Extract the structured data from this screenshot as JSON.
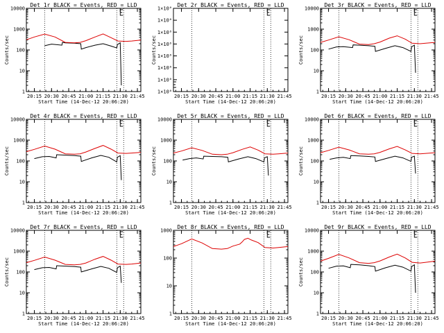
{
  "figure": {
    "background": "#ffffff",
    "axis_color": "#000000"
  },
  "chart_data": [
    {
      "type": "line",
      "title": "Det 1r BLACK = Events, RED = LLD",
      "xlabel": "Start Time (14-Dec-12 20:06:20)",
      "ylabel": "Counts/sec",
      "yscale": "log",
      "ylim": [
        1,
        10000
      ],
      "ytick_labels": [
        "1",
        "10",
        "100",
        "1000",
        "10000"
      ],
      "xlim": [
        "20:08",
        "21:48"
      ],
      "xtick_labels": [
        "20:15",
        "20:30",
        "20:45",
        "21:00",
        "21:15",
        "21:30",
        "21:45"
      ],
      "vlines": [
        "20:24",
        "21:27",
        "21:33"
      ],
      "markers": [
        "21:30"
      ],
      "series": [
        {
          "name": "Events",
          "color": "#000000",
          "x": [
            "20:24",
            "20:30",
            "20:39",
            "20:39.5",
            "20:42",
            "20:50",
            "20:55.5",
            "20:56",
            "21:00",
            "21:08",
            "21:15",
            "21:21",
            "21:27",
            "21:27.5",
            "21:30",
            "21:31"
          ],
          "y": [
            160,
            190,
            170,
            230,
            220,
            210,
            200,
            110,
            130,
            170,
            200,
            160,
            125,
            180,
            220,
            2
          ]
        },
        {
          "name": "LLD",
          "color": "#dd0000",
          "x": [
            "20:08",
            "20:15",
            "20:24",
            "20:33",
            "20:42",
            "20:50",
            "20:55",
            "21:00",
            "21:08",
            "21:15",
            "21:22",
            "21:28",
            "21:35",
            "21:40",
            "21:48"
          ],
          "y": [
            310,
            420,
            580,
            420,
            230,
            220,
            230,
            280,
            420,
            590,
            390,
            270,
            260,
            270,
            300
          ]
        }
      ]
    },
    {
      "type": "line",
      "title": "Det 2r BLACK = Events, RED = LLD",
      "xlabel": "Start Time (14-Dec-12 20:06:20)",
      "ylabel": "Counts/sec",
      "yscale": "log",
      "ylim": [
        1,
        1.000001
      ],
      "ytick_labels": [
        "1×10⁰",
        "1×10⁰",
        "1×10⁰",
        "1×10⁰",
        "1×10⁰",
        "1×10⁰",
        "1×10⁰",
        "1×10⁰"
      ],
      "xlim": [
        "20:08",
        "21:48"
      ],
      "xtick_labels": [
        "20:15",
        "20:30",
        "20:45",
        "21:00",
        "21:15",
        "21:30",
        "21:45"
      ],
      "vlines": [
        "20:24",
        "21:27",
        "21:33"
      ],
      "markers": [
        "20:08",
        "21:30"
      ],
      "series": []
    },
    {
      "type": "line",
      "title": "Det 3r BLACK = Events, RED = LLD",
      "xlabel": "Start Time (14-Dec-12 20:06:20)",
      "ylabel": "Counts/sec",
      "yscale": "log",
      "ylim": [
        1,
        10000
      ],
      "ytick_labels": [
        "1",
        "10",
        "100",
        "1000",
        "10000"
      ],
      "xlim": [
        "20:08",
        "21:48"
      ],
      "xtick_labels": [
        "20:15",
        "20:30",
        "20:45",
        "21:00",
        "21:15",
        "21:30",
        "21:45"
      ],
      "vlines": [
        "20:24",
        "21:27",
        "21:33"
      ],
      "markers": [
        "21:30"
      ],
      "series": [
        {
          "name": "Events",
          "color": "#000000",
          "x": [
            "20:15",
            "20:22",
            "20:28",
            "20:36",
            "20:36.5",
            "20:42",
            "20:50",
            "20:55.5",
            "20:56",
            "21:05",
            "21:13",
            "21:20",
            "21:27",
            "21:27.5",
            "21:30",
            "21:31"
          ],
          "y": [
            110,
            140,
            145,
            130,
            175,
            170,
            160,
            150,
            85,
            120,
            160,
            130,
            85,
            140,
            170,
            8
          ]
        },
        {
          "name": "LLD",
          "color": "#dd0000",
          "x": [
            "20:08",
            "20:15",
            "20:24",
            "20:33",
            "20:42",
            "20:50",
            "20:55",
            "21:00",
            "21:08",
            "21:15",
            "21:22",
            "21:28",
            "21:35",
            "21:40",
            "21:48"
          ],
          "y": [
            230,
            300,
            430,
            310,
            190,
            180,
            200,
            240,
            370,
            480,
            330,
            210,
            200,
            210,
            230
          ]
        }
      ]
    },
    {
      "type": "line",
      "title": "Det 4r BLACK = Events, RED = LLD",
      "xlabel": "Start Time (14-Dec-12 20:06:20)",
      "ylabel": "Counts/sec",
      "yscale": "log",
      "ylim": [
        1,
        10000
      ],
      "ytick_labels": [
        "1",
        "10",
        "100",
        "1000",
        "10000"
      ],
      "xlim": [
        "20:08",
        "21:48"
      ],
      "xtick_labels": [
        "20:15",
        "20:30",
        "20:45",
        "21:00",
        "21:15",
        "21:30",
        "21:45"
      ],
      "vlines": [
        "20:24",
        "21:27",
        "21:33"
      ],
      "markers": [
        "21:30"
      ],
      "series": [
        {
          "name": "Events",
          "color": "#000000",
          "x": [
            "20:15",
            "20:22",
            "20:28",
            "20:34",
            "20:34.5",
            "20:42",
            "20:50",
            "20:55.5",
            "20:56",
            "21:05",
            "21:13",
            "21:20",
            "21:27",
            "21:27.5",
            "21:30",
            "21:31"
          ],
          "y": [
            130,
            160,
            165,
            140,
            200,
            190,
            180,
            170,
            95,
            140,
            185,
            150,
            90,
            150,
            180,
            12
          ]
        },
        {
          "name": "LLD",
          "color": "#dd0000",
          "x": [
            "20:08",
            "20:15",
            "20:24",
            "20:33",
            "20:42",
            "20:50",
            "20:55",
            "21:00",
            "21:08",
            "21:15",
            "21:22",
            "21:28",
            "21:35",
            "21:40",
            "21:48"
          ],
          "y": [
            280,
            360,
            520,
            370,
            220,
            210,
            220,
            270,
            400,
            560,
            370,
            240,
            230,
            240,
            260
          ]
        }
      ]
    },
    {
      "type": "line",
      "title": "Det 5r BLACK = Events, RED = LLD",
      "xlabel": "Start Time (14-Dec-12 20:06:20)",
      "ylabel": "Counts/sec",
      "yscale": "log",
      "ylim": [
        1,
        10000
      ],
      "ytick_labels": [
        "1",
        "10",
        "100",
        "1000",
        "10000"
      ],
      "xlim": [
        "20:08",
        "21:48"
      ],
      "xtick_labels": [
        "20:15",
        "20:30",
        "20:45",
        "21:00",
        "21:15",
        "21:30",
        "21:45"
      ],
      "vlines": [
        "20:24",
        "21:27",
        "21:33"
      ],
      "markers": [
        "21:30"
      ],
      "series": [
        {
          "name": "Events",
          "color": "#000000",
          "x": [
            "20:16",
            "20:22",
            "20:28",
            "20:34",
            "20:34.5",
            "20:42",
            "20:50",
            "20:55.5",
            "20:56",
            "21:05",
            "21:13",
            "21:20",
            "21:27",
            "21:27.5",
            "21:30",
            "21:31"
          ],
          "y": [
            110,
            130,
            140,
            125,
            170,
            165,
            160,
            150,
            90,
            125,
            160,
            130,
            90,
            140,
            160,
            20
          ]
        },
        {
          "name": "LLD",
          "color": "#dd0000",
          "x": [
            "20:08",
            "20:15",
            "20:24",
            "20:33",
            "20:42",
            "20:50",
            "20:55",
            "21:00",
            "21:08",
            "21:15",
            "21:22",
            "21:28",
            "21:35",
            "21:40",
            "21:48"
          ],
          "y": [
            240,
            300,
            430,
            320,
            210,
            200,
            210,
            250,
            360,
            470,
            330,
            220,
            210,
            220,
            240
          ]
        }
      ]
    },
    {
      "type": "line",
      "title": "Det 6r BLACK = Events, RED = LLD",
      "xlabel": "Start Time (14-Dec-12 20:06:20)",
      "ylabel": "Counts/sec",
      "yscale": "log",
      "ylim": [
        1,
        10000
      ],
      "ytick_labels": [
        "1",
        "10",
        "100",
        "1000",
        "10000"
      ],
      "xlim": [
        "20:08",
        "21:48"
      ],
      "xtick_labels": [
        "20:15",
        "20:30",
        "20:45",
        "21:00",
        "21:15",
        "21:30",
        "21:45"
      ],
      "vlines": [
        "20:24",
        "21:27",
        "21:33"
      ],
      "markers": [
        "21:30"
      ],
      "series": [
        {
          "name": "Events",
          "color": "#000000",
          "x": [
            "20:16",
            "20:22",
            "20:28",
            "20:34",
            "20:34.5",
            "20:42",
            "20:50",
            "20:55.5",
            "20:56",
            "21:05",
            "21:13",
            "21:20",
            "21:27",
            "21:27.5",
            "21:30",
            "21:31"
          ],
          "y": [
            120,
            140,
            150,
            130,
            180,
            175,
            165,
            155,
            95,
            130,
            170,
            140,
            95,
            150,
            170,
            25
          ]
        },
        {
          "name": "LLD",
          "color": "#dd0000",
          "x": [
            "20:08",
            "20:15",
            "20:24",
            "20:33",
            "20:42",
            "20:50",
            "20:55",
            "21:00",
            "21:08",
            "21:15",
            "21:22",
            "21:28",
            "21:35",
            "21:40",
            "21:48"
          ],
          "y": [
            250,
            320,
            460,
            340,
            220,
            210,
            220,
            260,
            380,
            500,
            340,
            230,
            220,
            230,
            250
          ]
        }
      ]
    },
    {
      "type": "line",
      "title": "Det 7r BLACK = Events, RED = LLD",
      "xlabel": "Start Time (14-Dec-12 20:06:20)",
      "ylabel": "Counts/sec",
      "yscale": "log",
      "ylim": [
        1,
        10000
      ],
      "ytick_labels": [
        "1",
        "10",
        "100",
        "1000",
        "10000"
      ],
      "xlim": [
        "20:08",
        "21:48"
      ],
      "xtick_labels": [
        "20:15",
        "20:30",
        "20:45",
        "21:00",
        "21:15",
        "21:30",
        "21:45"
      ],
      "vlines": [
        "20:24",
        "21:27",
        "21:33"
      ],
      "markers": [
        "21:30"
      ],
      "series": [
        {
          "name": "Events",
          "color": "#000000",
          "x": [
            "20:15",
            "20:22",
            "20:28",
            "20:34",
            "20:34.5",
            "20:42",
            "20:50",
            "20:55.5",
            "20:56",
            "21:05",
            "21:13",
            "21:20",
            "21:27",
            "21:27.5",
            "21:30",
            "21:31"
          ],
          "y": [
            130,
            160,
            165,
            140,
            200,
            190,
            180,
            170,
            100,
            140,
            185,
            150,
            95,
            160,
            190,
            30
          ]
        },
        {
          "name": "LLD",
          "color": "#dd0000",
          "x": [
            "20:08",
            "20:15",
            "20:24",
            "20:33",
            "20:42",
            "20:50",
            "20:55",
            "21:00",
            "21:08",
            "21:15",
            "21:22",
            "21:28",
            "21:35",
            "21:40",
            "21:48"
          ],
          "y": [
            280,
            360,
            520,
            370,
            230,
            220,
            230,
            270,
            410,
            560,
            370,
            240,
            230,
            240,
            270
          ]
        }
      ]
    },
    {
      "type": "line",
      "title": "Det 8r BLACK = Events, RED = LLD",
      "xlabel": "Start Time (14-Dec-12 20:06:20)",
      "ylabel": "",
      "yscale": "log",
      "ylim": [
        1,
        1000
      ],
      "ytick_labels": [
        "1",
        "10",
        "100",
        "1000"
      ],
      "xlim": [
        "20:08",
        "21:48"
      ],
      "xtick_labels": [
        "20:15",
        "20:30",
        "20:45",
        "21:00",
        "21:15",
        "21:30",
        "21:45"
      ],
      "vlines": [
        "20:24",
        "21:27",
        "21:33"
      ],
      "markers": [
        "21:30"
      ],
      "series": [
        {
          "name": "LLD",
          "color": "#dd0000",
          "x": [
            "20:08",
            "20:15",
            "20:24",
            "20:33",
            "20:42",
            "20:50",
            "20:55",
            "21:00",
            "21:06",
            "21:08",
            "21:10",
            "21:13",
            "21:16",
            "21:22",
            "21:28",
            "21:35",
            "21:40",
            "21:48"
          ],
          "y": [
            260,
            330,
            490,
            350,
            220,
            210,
            220,
            270,
            320,
            380,
            470,
            520,
            450,
            360,
            240,
            230,
            240,
            260
          ]
        }
      ]
    },
    {
      "type": "line",
      "title": "Det 9r BLACK = Events, RED = LLD",
      "xlabel": "Start Time (14-Dec-12 20:06:20)",
      "ylabel": "Counts/sec",
      "yscale": "log",
      "ylim": [
        1,
        10000
      ],
      "ytick_labels": [
        "1",
        "10",
        "100",
        "1000",
        "10000"
      ],
      "xlim": [
        "20:08",
        "21:48"
      ],
      "xtick_labels": [
        "20:15",
        "20:30",
        "20:45",
        "21:00",
        "21:15",
        "21:30",
        "21:45"
      ],
      "vlines": [
        "20:24",
        "21:27",
        "21:33"
      ],
      "markers": [
        "21:30"
      ],
      "series": [
        {
          "name": "Events",
          "color": "#000000",
          "x": [
            "20:15",
            "20:22",
            "20:28",
            "20:34",
            "20:34.5",
            "20:42",
            "20:50",
            "20:55.5",
            "20:56",
            "21:05",
            "21:13",
            "21:20",
            "21:27",
            "21:27.5",
            "21:30",
            "21:31"
          ],
          "y": [
            150,
            190,
            195,
            160,
            230,
            220,
            200,
            180,
            110,
            160,
            210,
            170,
            110,
            180,
            220,
            10
          ]
        },
        {
          "name": "LLD",
          "color": "#dd0000",
          "x": [
            "20:08",
            "20:15",
            "20:24",
            "20:33",
            "20:42",
            "20:50",
            "20:55",
            "21:00",
            "21:08",
            "21:15",
            "21:22",
            "21:28",
            "21:35",
            "21:40",
            "21:48"
          ],
          "y": [
            330,
            450,
            700,
            470,
            280,
            260,
            280,
            340,
            520,
            720,
            470,
            290,
            270,
            290,
            330
          ]
        }
      ]
    }
  ]
}
